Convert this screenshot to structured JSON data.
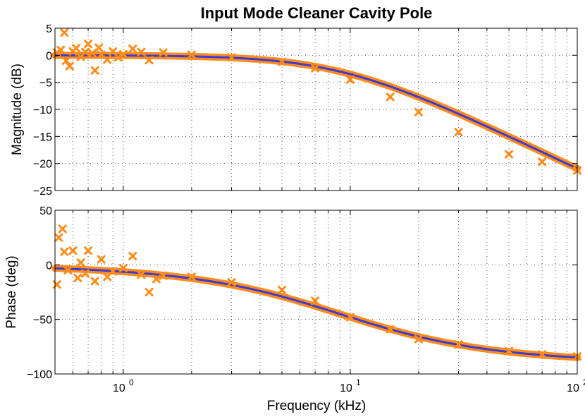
{
  "chart_data": {
    "title": "Input Mode Cleaner Cavity Pole",
    "xlabel": "Frequency (kHz)",
    "xscale": "log",
    "xlim": [
      0.5,
      100
    ],
    "x_ticks": [
      {
        "value": 1,
        "base": "10",
        "exp": "0"
      },
      {
        "value": 10,
        "base": "10",
        "exp": "1"
      },
      {
        "value": 100,
        "base": "10",
        "exp": "2"
      }
    ],
    "grid": true,
    "colors": {
      "measurement": "#ff8c1a",
      "fit": "#3a3ad8",
      "fit_glow": "#ff8c1a"
    },
    "panels": [
      {
        "type": "scatter+line",
        "ylabel": "Magnitude (dB)",
        "ylim": [
          -25,
          5
        ],
        "yticks": [
          5,
          0,
          -5,
          -10,
          -15,
          -20,
          -25
        ],
        "ytick_labels": [
          "5",
          "0",
          "−5",
          "−10",
          "−15",
          "−20",
          "−25"
        ],
        "series": [
          {
            "kind": "measurement",
            "marker": "x",
            "x": [
              0.51,
              0.53,
              0.55,
              0.56,
              0.58,
              0.6,
              0.62,
              0.65,
              0.68,
              0.7,
              0.73,
              0.75,
              0.78,
              0.8,
              0.85,
              0.9,
              0.95,
              1.0,
              1.1,
              1.2,
              1.3,
              1.5,
              2,
              3,
              5,
              7,
              10,
              15,
              20,
              30,
              50,
              70,
              100
            ],
            "y": [
              0.5,
              1.0,
              4.2,
              -1.0,
              -2.0,
              0.7,
              1.3,
              -0.3,
              0.6,
              2.1,
              0.4,
              -2.8,
              1.4,
              0.1,
              -0.8,
              0.7,
              -0.4,
              0.2,
              1.2,
              0.6,
              -0.9,
              0.5,
              0.1,
              -0.4,
              -1.2,
              -2.4,
              -4.5,
              -7.7,
              -10.5,
              -14.2,
              -18.3,
              -19.7,
              -21.3
            ]
          },
          {
            "kind": "fit",
            "function": "single-pole",
            "pole_kHz": 9.0,
            "x_range": [
              0.5,
              100
            ]
          }
        ]
      },
      {
        "type": "scatter+line",
        "ylabel": "Phase (deg)",
        "xlabel": "Frequency (kHz)",
        "ylim": [
          -100,
          50
        ],
        "yticks": [
          50,
          0,
          -50,
          -100
        ],
        "ytick_labels": [
          "50",
          "0",
          "−50",
          "−100"
        ],
        "series": [
          {
            "kind": "measurement",
            "marker": "x",
            "x": [
              0.51,
              0.52,
              0.54,
              0.55,
              0.57,
              0.6,
              0.63,
              0.65,
              0.68,
              0.7,
              0.75,
              0.8,
              0.85,
              0.9,
              1.0,
              1.1,
              1.2,
              1.3,
              1.4,
              1.5,
              2,
              3,
              5,
              7,
              10,
              15,
              20,
              30,
              50,
              70,
              100
            ],
            "y": [
              -18,
              25,
              33,
              12,
              -5,
              13,
              -12,
              2,
              -8,
              13,
              -15,
              5,
              -11,
              -6,
              -3,
              8,
              -9,
              -25,
              -13,
              -10,
              -11,
              -16,
              -23,
              -33,
              -48,
              -59,
              -68,
              -73,
              -79,
              -82,
              -84
            ]
          },
          {
            "kind": "fit",
            "function": "single-pole",
            "pole_kHz": 9.0,
            "x_range": [
              0.5,
              100
            ]
          }
        ]
      }
    ]
  }
}
